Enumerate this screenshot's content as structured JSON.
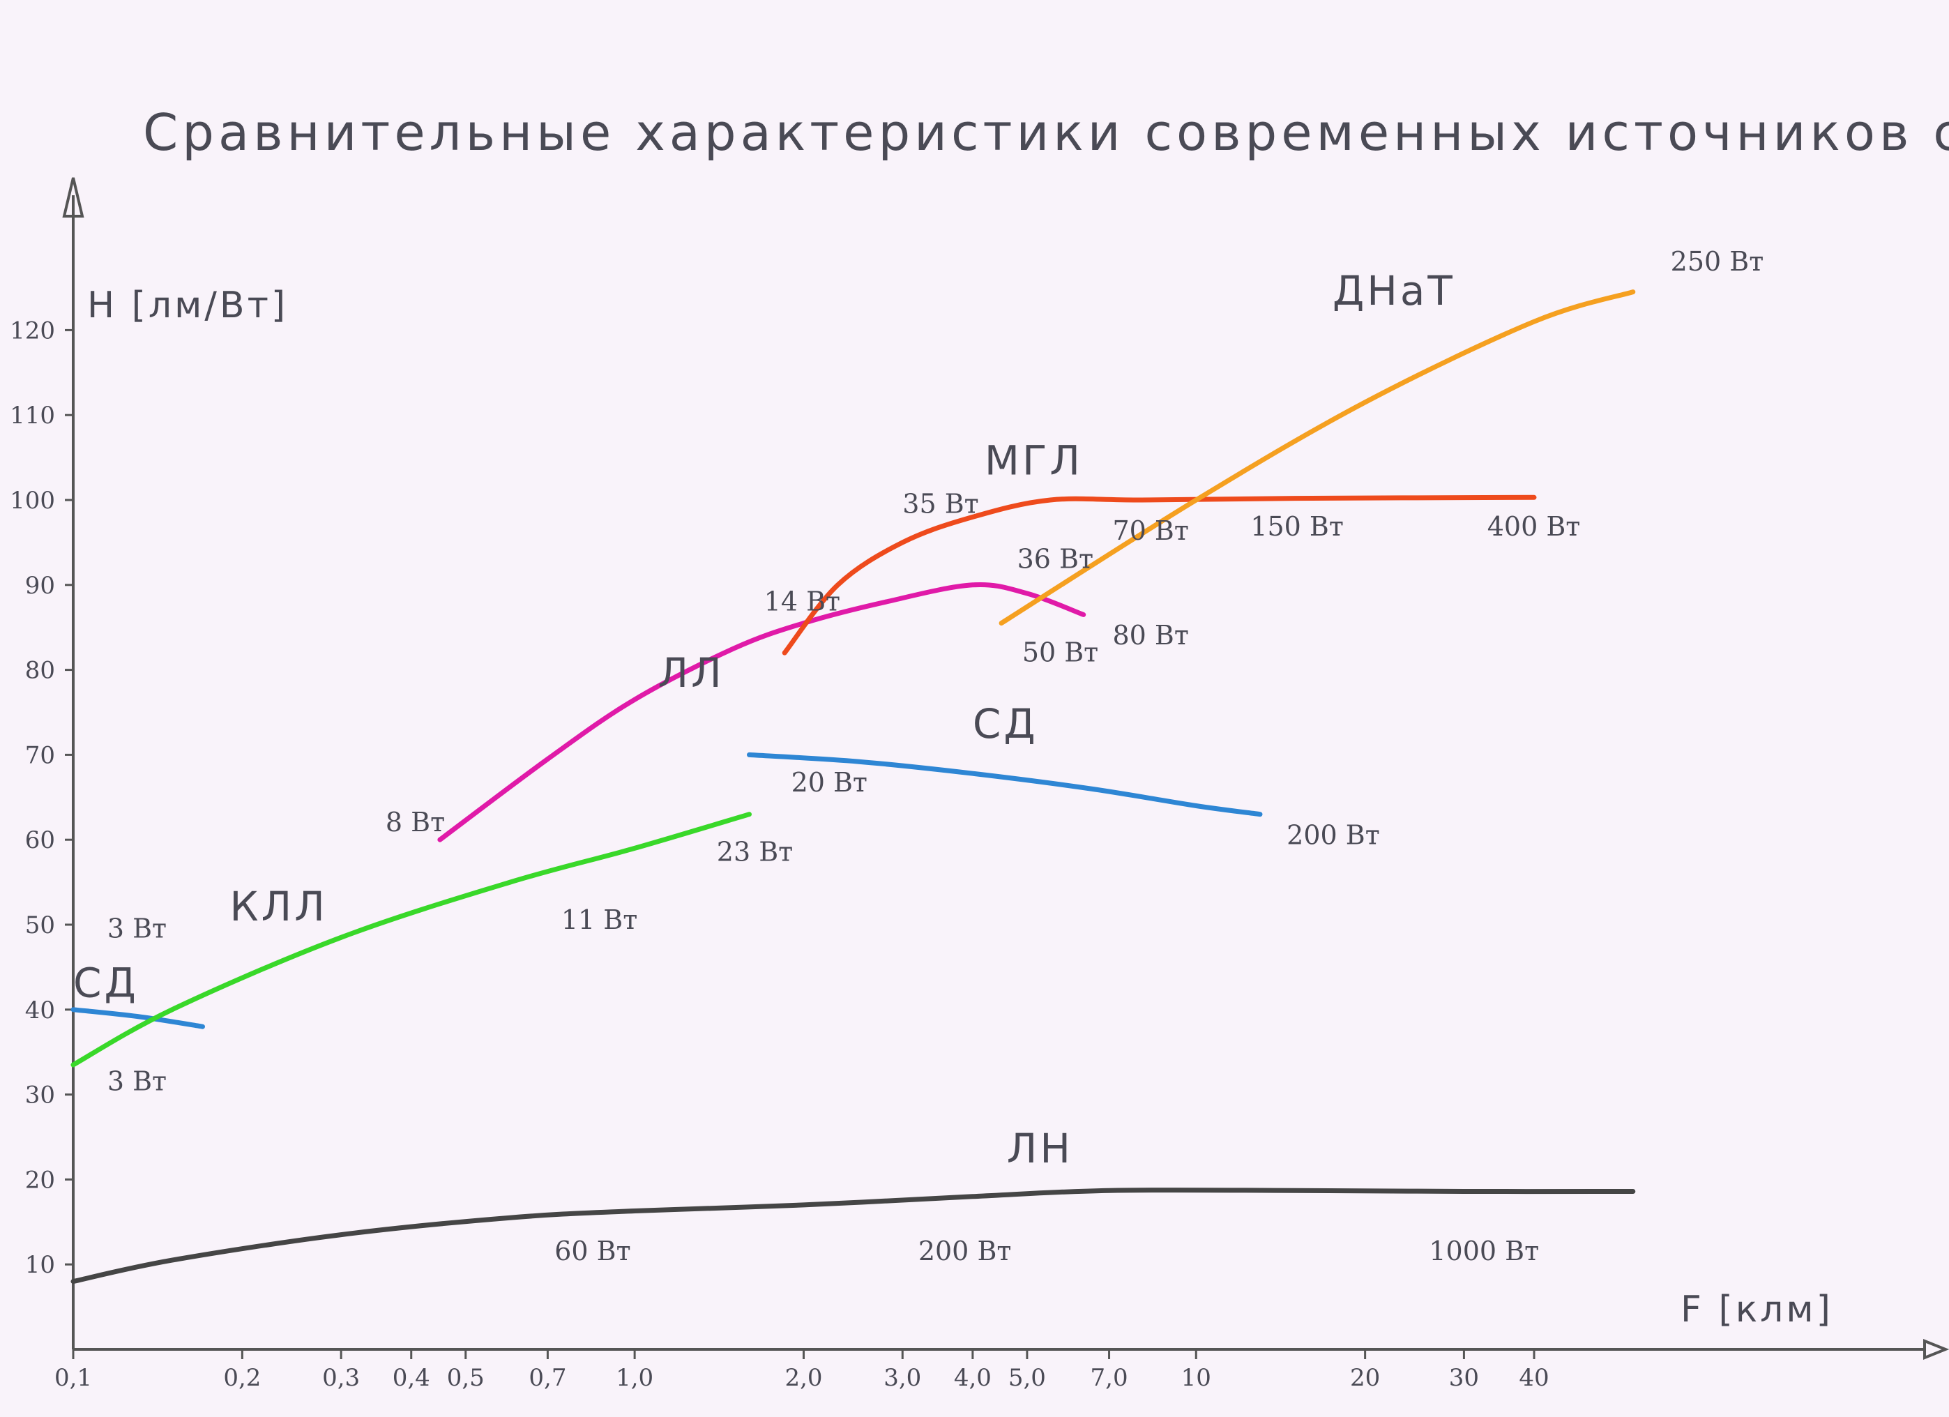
{
  "chart_data": {
    "type": "line",
    "title": "Сравнительные характеристики современных источников света",
    "ylabel": "H [лм/Вт]",
    "xlabel": "F [клм]",
    "x_scale": "log",
    "xlim": [
      0.1,
      80
    ],
    "ylim": [
      0,
      130
    ],
    "grid": false,
    "y_ticks": [
      10,
      20,
      30,
      40,
      50,
      60,
      70,
      80,
      90,
      100,
      110,
      120
    ],
    "y_tick_labels": [
      "10",
      "20",
      "30",
      "40",
      "50",
      "60",
      "70",
      "80",
      "90",
      "100",
      "110",
      "120"
    ],
    "x_ticks": [
      0.1,
      0.2,
      0.3,
      0.4,
      0.5,
      0.7,
      1.0,
      2.0,
      3.0,
      4.0,
      5.0,
      7.0,
      10,
      20,
      30,
      40
    ],
    "x_tick_labels": [
      "0,1",
      "0,2",
      "0,3",
      "0,4",
      "0,5",
      "0,7",
      "1,0",
      "2,0",
      "3,0",
      "4,0",
      "5,0",
      "7,0",
      "10",
      "20",
      "30",
      "40"
    ],
    "series": [
      {
        "name": "ЛН",
        "color": "#454545",
        "x": [
          0.1,
          0.15,
          0.3,
          0.6,
          1.0,
          2.0,
          4.0,
          7.0,
          15,
          30,
          60
        ],
        "y": [
          8,
          10.5,
          13.5,
          15.5,
          16.3,
          17,
          18,
          18.7,
          18.7,
          18.6,
          18.6
        ],
        "name_label": {
          "x": 4.6,
          "y": 22
        },
        "labels": [
          {
            "text": "60 Вт",
            "x": 0.72,
            "y": 10.5
          },
          {
            "text": "200 Вт",
            "x": 3.2,
            "y": 10.5
          },
          {
            "text": "1000 Вт",
            "x": 26,
            "y": 10.5
          }
        ]
      },
      {
        "name": "СД",
        "color": "#2e86d4",
        "x": [
          0.1,
          0.13,
          0.17
        ],
        "y": [
          40,
          39.2,
          38
        ],
        "name_label": {
          "x": 0.1,
          "y": 41.5
        },
        "labels": [
          {
            "text": "3 Вт",
            "x": 0.115,
            "y": 30.5
          }
        ]
      },
      {
        "name": "КЛЛ",
        "color": "#39d829",
        "x": [
          0.1,
          0.15,
          0.3,
          0.6,
          1.0,
          1.6
        ],
        "y": [
          33.5,
          40,
          48.5,
          55,
          59,
          63
        ],
        "name_label": {
          "x": 0.19,
          "y": 50.5
        },
        "labels": [
          {
            "text": "3 Вт",
            "x": 0.115,
            "y": 48.5
          },
          {
            "text": "11 Вт",
            "x": 0.74,
            "y": 49.5
          },
          {
            "text": "23 Вт",
            "x": 1.4,
            "y": 57.5
          }
        ]
      },
      {
        "name": "ЛЛ",
        "color": "#e01aa8",
        "x": [
          0.45,
          0.7,
          1.0,
          1.5,
          2.0,
          2.8,
          4.0,
          5.0,
          6.3
        ],
        "y": [
          60,
          69.5,
          76.5,
          82.5,
          85.5,
          88,
          90,
          89,
          86.5
        ],
        "name_label": {
          "x": 1.1,
          "y": 78
        },
        "labels": [
          {
            "text": "8 Вт",
            "x": 0.36,
            "y": 61
          },
          {
            "text": "14 Вт",
            "x": 1.7,
            "y": 87
          },
          {
            "text": "36 Вт",
            "x": 4.8,
            "y": 92
          },
          {
            "text": "80 Вт",
            "x": 7.1,
            "y": 83
          }
        ]
      },
      {
        "name": "СД",
        "color": "#2e86d4",
        "x": [
          1.6,
          2.5,
          4.0,
          6.5,
          10.0,
          13
        ],
        "y": [
          70,
          69.2,
          67.8,
          66,
          64,
          63
        ],
        "name_label": {
          "x": 4.0,
          "y": 72
        },
        "labels": [
          {
            "text": "20 Вт",
            "x": 1.9,
            "y": 65.7
          },
          {
            "text": "200 Вт",
            "x": 14.5,
            "y": 59.5
          }
        ]
      },
      {
        "name": "МГЛ",
        "color": "#ee4a1c",
        "x": [
          1.85,
          2.3,
          3.0,
          4.0,
          5.5,
          8.0,
          15,
          40
        ],
        "y": [
          82,
          90,
          95,
          98,
          100,
          100,
          100.2,
          100.3
        ],
        "name_label": {
          "x": 4.2,
          "y": 103
        },
        "labels": [
          {
            "text": "35 Вт",
            "x": 3.0,
            "y": 98.5
          },
          {
            "text": "70 Вт",
            "x": 7.1,
            "y": 95.3
          },
          {
            "text": "150 Вт",
            "x": 12.5,
            "y": 95.8
          },
          {
            "text": "400 Вт",
            "x": 33,
            "y": 95.8
          }
        ]
      },
      {
        "name": "ДНаТ",
        "color": "#f5a020",
        "x": [
          4.5,
          10,
          20,
          40,
          60
        ],
        "y": [
          85.5,
          100,
          111.5,
          121,
          124.5
        ],
        "name_label": {
          "x": 17.5,
          "y": 123
        },
        "labels": [
          {
            "text": "50 Вт",
            "x": 4.9,
            "y": 81
          },
          {
            "text": "250 Вт",
            "x": 70,
            "y": 127
          }
        ]
      }
    ]
  }
}
